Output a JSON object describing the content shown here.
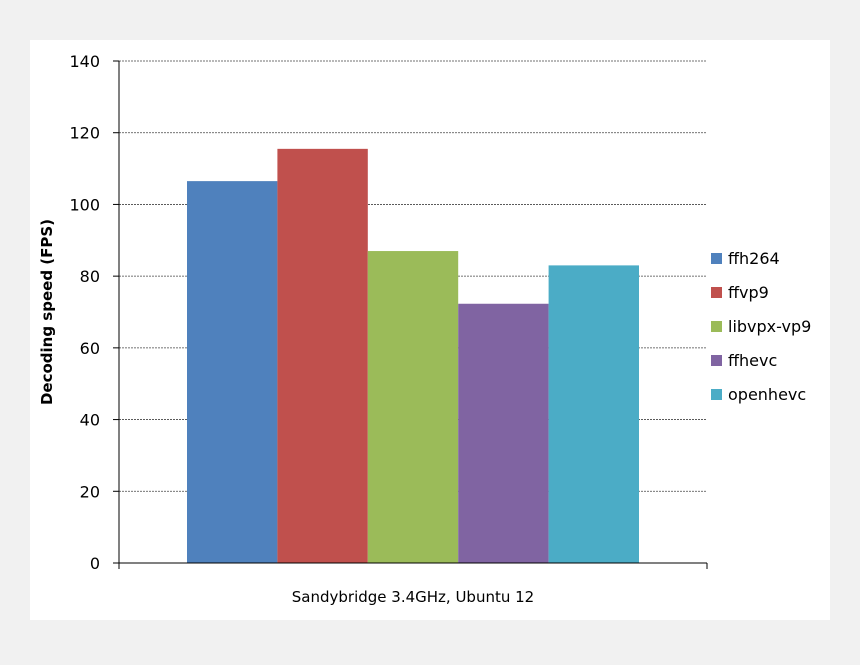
{
  "chart_data": {
    "type": "bar",
    "categories": [
      "Sandybridge 3.4GHz, Ubuntu 12"
    ],
    "series": [
      {
        "name": "ffh264",
        "values": [
          106.5
        ],
        "color": "#4f81bd"
      },
      {
        "name": "ffvp9",
        "values": [
          115.5
        ],
        "color": "#c0504d"
      },
      {
        "name": "libvpx-vp9",
        "values": [
          87
        ],
        "color": "#9bbb59"
      },
      {
        "name": "ffhevc",
        "values": [
          72.3
        ],
        "color": "#8064a2"
      },
      {
        "name": "openhevc",
        "values": [
          83
        ],
        "color": "#4bacc6"
      }
    ],
    "ylabel": "Decoding speed (FPS)",
    "xlabel": "Sandybridge 3.4GHz, Ubuntu 12",
    "ylim": [
      0,
      140
    ],
    "yticks": [
      0,
      20,
      40,
      60,
      80,
      100,
      120,
      140
    ],
    "grid": true,
    "legend_position": "right"
  }
}
